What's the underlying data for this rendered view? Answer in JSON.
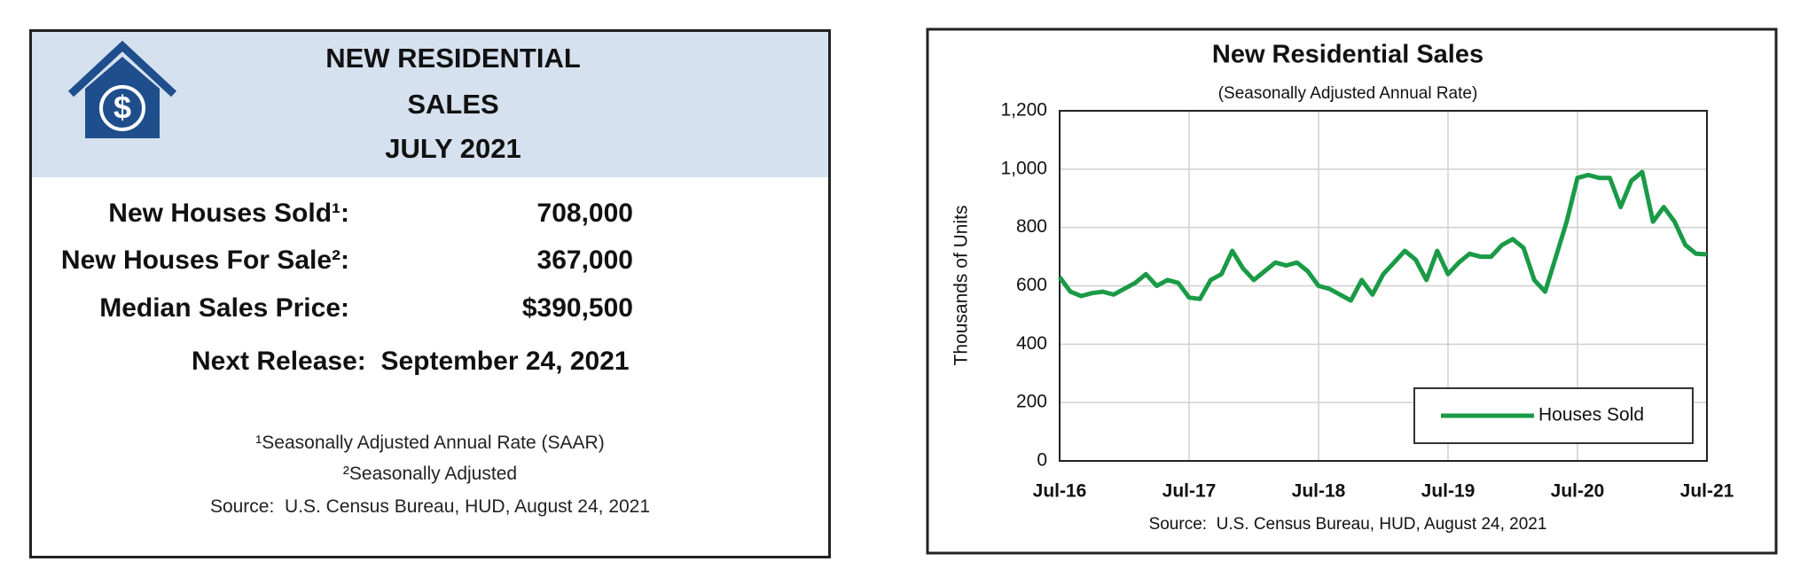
{
  "panel": {
    "title_lines": [
      "NEW RESIDENTIAL",
      "SALES",
      "JULY 2021"
    ],
    "rows": [
      {
        "label": "New Houses Sold¹:",
        "value": "708,000"
      },
      {
        "label": "New Houses For Sale²:",
        "value": "367,000"
      },
      {
        "label": "Median Sales Price:",
        "value": "$390,500"
      }
    ],
    "next_release": "Next Release:  September 24, 2021",
    "footnotes": [
      "¹Seasonally Adjusted Annual Rate (SAAR)",
      "²Seasonally Adjusted",
      "Source:  U.S. Census Bureau, HUD, August 24, 2021"
    ]
  },
  "chart_data": {
    "type": "line",
    "title": "New Residential Sales",
    "subtitle": "(Seasonally Adjusted Annual Rate)",
    "y_label": "Thousands of Units",
    "source": "Source:  U.S. Census Bureau, HUD, August 24, 2021",
    "categories": [
      "Jul-16",
      null,
      null,
      null,
      null,
      null,
      null,
      null,
      null,
      null,
      null,
      null,
      "Jul-17",
      null,
      null,
      null,
      null,
      null,
      null,
      null,
      null,
      null,
      null,
      null,
      "Jul-18",
      null,
      null,
      null,
      null,
      null,
      null,
      null,
      null,
      null,
      null,
      null,
      "Jul-19",
      null,
      null,
      null,
      null,
      null,
      null,
      null,
      null,
      null,
      null,
      null,
      "Jul-20",
      null,
      null,
      null,
      null,
      null,
      null,
      null,
      null,
      null,
      null,
      null,
      "Jul-21"
    ],
    "series": [
      {
        "name": "Houses Sold",
        "color": "#1a9a46",
        "values": [
          630,
          580,
          565,
          575,
          580,
          570,
          590,
          610,
          640,
          600,
          620,
          610,
          560,
          555,
          620,
          640,
          720,
          660,
          620,
          650,
          680,
          670,
          680,
          650,
          600,
          590,
          570,
          550,
          620,
          570,
          640,
          680,
          720,
          690,
          620,
          720,
          640,
          680,
          710,
          700,
          700,
          740,
          760,
          730,
          620,
          580,
          700,
          820,
          970,
          980,
          970,
          970,
          870,
          960,
          990,
          820,
          870,
          820,
          740,
          710,
          708
        ]
      }
    ],
    "ylim": [
      0,
      1200
    ],
    "yticks": [
      0,
      200,
      400,
      600,
      800,
      {
        "value": 1000,
        "label": "1,000"
      },
      {
        "value": 1200,
        "label": "1,200"
      }
    ],
    "grid": true,
    "legend": "lower-right"
  }
}
